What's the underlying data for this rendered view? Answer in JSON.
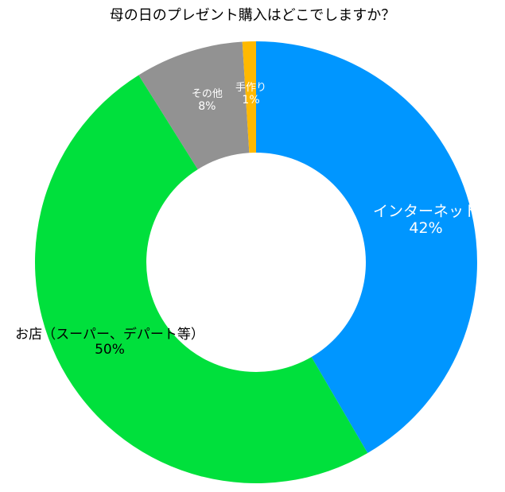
{
  "chart_data": {
    "type": "pie",
    "variant": "donut",
    "title": "母の日のプレゼント購入はどこでしますか？",
    "slices": [
      {
        "label": "インターネット",
        "value": 42,
        "value_label": "42%",
        "color": "#0096ff"
      },
      {
        "label": "お店（スーパー、デパート等）",
        "value": 50,
        "value_label": "50%",
        "color": "#00e03c"
      },
      {
        "label": "その他",
        "value": 8,
        "value_label": "8%",
        "color": "#929292"
      },
      {
        "label": "手作り",
        "value": 1,
        "value_label": "1%",
        "color": "#ffb900"
      }
    ],
    "start": "12 o'clock",
    "direction": "clockwise",
    "legend": "none",
    "labels": "on slices"
  }
}
